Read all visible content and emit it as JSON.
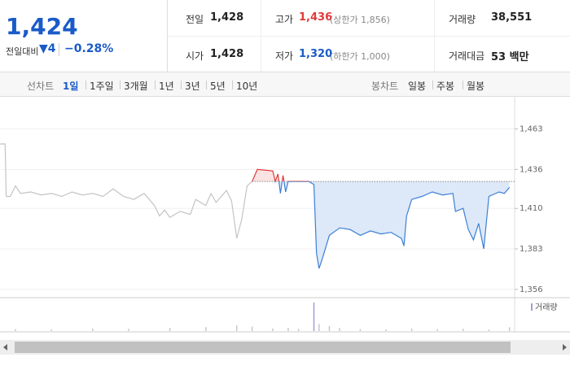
{
  "header": {
    "price": "1,424",
    "change_label": "전일대비",
    "change": "▼4",
    "change_rate": "−0.28%",
    "stats": [
      {
        "label": "전일",
        "value": "1,428"
      },
      {
        "label": "고가",
        "value": "1,436",
        "note": "(상한가 1,856)"
      },
      {
        "label": "거래량",
        "value": "38,551"
      },
      {
        "label": "시가",
        "value": "1,428"
      },
      {
        "label": "저가",
        "value": "1,320",
        "note": "(하한가 1,000)"
      },
      {
        "label": "거래대금",
        "value": "53 백만"
      }
    ]
  },
  "tabs": {
    "line_label": "선차트",
    "line_tabs": [
      "1일",
      "1주일",
      "3개월",
      "1년",
      "3년",
      "5년",
      "10년"
    ],
    "candle_label": "봉차트",
    "candle_tabs": [
      "일봉",
      "주봉",
      "월봉"
    ]
  },
  "chart_data": {
    "type": "line",
    "xlim": [
      0,
      100
    ],
    "ylim": [
      1351,
      1485
    ],
    "yticks": [
      {
        "value": 1463,
        "label": "1,463"
      },
      {
        "value": 1436,
        "label": "1,436"
      },
      {
        "value": 1410,
        "label": "1,410"
      },
      {
        "value": 1383,
        "label": "1,383"
      },
      {
        "value": 1356,
        "label": "1,356"
      }
    ],
    "grid": true,
    "reference": 1428,
    "up_color": "#e03a3a",
    "down_color": "#3d7fd6",
    "up_fill": "#fbe3e3",
    "down_fill": "#dde9f8",
    "series": [
      {
        "color": "#c4c4c4",
        "x": [
          0,
          1,
          1.2,
          2,
          3,
          4,
          6,
          8,
          10,
          12,
          14,
          16,
          18,
          20,
          22,
          24,
          26,
          28,
          30,
          31,
          32,
          33,
          35,
          37,
          38,
          40,
          41,
          42,
          43,
          44,
          45,
          46,
          47,
          48,
          49
        ],
        "values": [
          1453,
          1453,
          1418,
          1418,
          1425,
          1420,
          1421,
          1419,
          1420,
          1418,
          1421,
          1419,
          1420,
          1418,
          1423,
          1418,
          1416,
          1420,
          1412,
          1405,
          1409,
          1404,
          1408,
          1406,
          1416,
          1412,
          1420,
          1414,
          1418,
          1422,
          1415,
          1390,
          1403,
          1425,
          1428
        ]
      },
      {
        "split": true,
        "x": [
          49,
          50,
          53,
          53.5,
          54,
          54.5,
          55,
          55.5,
          56,
          60,
          61,
          61.5,
          62,
          62.5,
          64,
          66,
          68,
          70,
          72,
          74,
          76,
          78,
          78.5,
          79,
          80,
          82,
          84,
          86,
          88,
          88.5,
          90,
          91,
          92,
          93,
          94,
          95,
          97,
          98,
          99
        ],
        "values": [
          1428,
          1436,
          1435,
          1428,
          1433,
          1420,
          1432,
          1421,
          1428,
          1428,
          1426,
          1380,
          1370,
          1375,
          1392,
          1397,
          1396,
          1392,
          1395,
          1393,
          1394,
          1390,
          1385,
          1405,
          1416,
          1418,
          1421,
          1419,
          1420,
          1408,
          1410,
          1396,
          1389,
          1400,
          1383,
          1418,
          1421,
          1420,
          1424
        ]
      }
    ],
    "volume": {
      "name": "거래량",
      "color": "#a89ad6",
      "vlim": [
        0,
        5000
      ],
      "bar_color": "#c8c8c8",
      "x": [
        3,
        10,
        18,
        25,
        33,
        40,
        46,
        49,
        53,
        56,
        58,
        61,
        62,
        64,
        66,
        70,
        75,
        80,
        85,
        90,
        95,
        99
      ],
      "values": [
        300,
        250,
        400,
        350,
        500,
        600,
        900,
        700,
        400,
        500,
        350,
        4500,
        1100,
        800,
        500,
        300,
        250,
        400,
        300,
        350,
        250,
        600
      ]
    }
  }
}
